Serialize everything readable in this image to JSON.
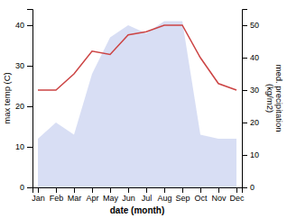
{
  "chart_data": {
    "type": "area",
    "xlabel": "date (month)",
    "ylabel": "max temp (C)",
    "y2label": "med. precipitation\n(kg/m2)",
    "categories": [
      "Jan",
      "Feb",
      "Mar",
      "Apr",
      "May",
      "Jun",
      "Jul",
      "Aug",
      "Sep",
      "Oct",
      "Nov",
      "Dec"
    ],
    "series": [
      {
        "type": "area",
        "color": "#c8d0f0",
        "values": [
          12,
          16,
          13,
          28,
          37,
          40,
          38,
          41,
          41,
          13,
          12,
          12
        ]
      },
      {
        "type": "line",
        "color": "#cc4444",
        "axis": "y2",
        "values": [
          30,
          30,
          35,
          42,
          41,
          47,
          48,
          50,
          50,
          40,
          32,
          30
        ]
      }
    ],
    "ylim": [
      0,
      44
    ],
    "yticks": [
      0,
      10,
      20,
      30,
      40
    ],
    "y2lim": [
      0,
      55
    ],
    "y2ticks": [
      0,
      10,
      20,
      30,
      40,
      50
    ],
    "grid": false
  }
}
